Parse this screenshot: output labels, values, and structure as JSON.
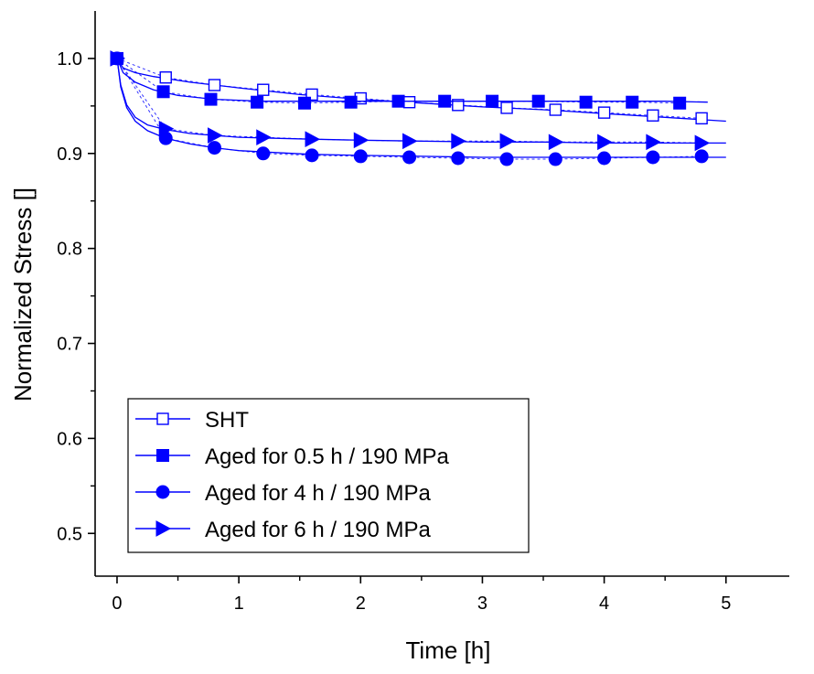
{
  "chart_data": {
    "type": "line",
    "title": "",
    "xlabel": "Time [h]",
    "ylabel": "Normalized Stress []",
    "xlim": [
      -0.18,
      5.52
    ],
    "ylim": [
      0.455,
      1.05
    ],
    "xticks": [
      0,
      1,
      2,
      3,
      4,
      5
    ],
    "xtick_labels": [
      "0",
      "1",
      "2",
      "3",
      "4",
      "5"
    ],
    "yticks": [
      0.5,
      0.6,
      0.7,
      0.8,
      0.9,
      1.0
    ],
    "ytick_labels": [
      "0.5",
      "0.6",
      "0.7",
      "0.8",
      "0.9",
      "1.0"
    ],
    "grid": false,
    "legend_position": "bottom-left",
    "line_color": "#0000ff",
    "series": [
      {
        "name": "SHT",
        "marker": "open-square",
        "x": [
          0,
          0.4,
          0.8,
          1.2,
          1.6,
          2.0,
          2.4,
          2.8,
          3.2,
          3.6,
          4.0,
          4.4,
          4.8
        ],
        "values": [
          1.0,
          0.98,
          0.972,
          0.967,
          0.962,
          0.958,
          0.954,
          0.951,
          0.948,
          0.946,
          0.943,
          0.94,
          0.937
        ],
        "fit_x": [
          0,
          0.05,
          0.15,
          0.3,
          0.6,
          1.0,
          1.5,
          2.0,
          2.5,
          3.0,
          3.5,
          4.0,
          4.5,
          5.0
        ],
        "fit_y": [
          1.0,
          0.99,
          0.985,
          0.981,
          0.975,
          0.969,
          0.962,
          0.957,
          0.953,
          0.949,
          0.946,
          0.942,
          0.938,
          0.934
        ]
      },
      {
        "name": "Aged for 0.5 h / 190 MPa",
        "marker": "filled-square",
        "x": [
          0,
          0.38,
          0.77,
          1.15,
          1.54,
          1.92,
          2.31,
          2.69,
          3.08,
          3.46,
          3.85,
          4.23,
          4.62
        ],
        "values": [
          1.0,
          0.965,
          0.957,
          0.954,
          0.953,
          0.954,
          0.955,
          0.955,
          0.955,
          0.955,
          0.954,
          0.954,
          0.953
        ],
        "fit_x": [
          0,
          0.05,
          0.15,
          0.3,
          0.5,
          0.8,
          1.2,
          1.6,
          2.0,
          2.5,
          3.0,
          3.5,
          4.0,
          4.5,
          4.85
        ],
        "fit_y": [
          1.0,
          0.985,
          0.975,
          0.967,
          0.961,
          0.957,
          0.955,
          0.955,
          0.955,
          0.955,
          0.955,
          0.955,
          0.955,
          0.955,
          0.954
        ]
      },
      {
        "name": "Aged for 4 h / 190 MPa",
        "marker": "filled-circle",
        "x": [
          0,
          0.4,
          0.8,
          1.2,
          1.6,
          2.0,
          2.4,
          2.8,
          3.2,
          3.6,
          4.0,
          4.4,
          4.8
        ],
        "values": [
          1.0,
          0.916,
          0.906,
          0.9,
          0.898,
          0.897,
          0.896,
          0.895,
          0.894,
          0.894,
          0.895,
          0.896,
          0.897
        ],
        "fit_x": [
          0,
          0.03,
          0.08,
          0.15,
          0.25,
          0.4,
          0.6,
          0.8,
          1.0,
          1.3,
          1.6,
          2.0,
          2.5,
          3.0,
          3.5,
          4.0,
          4.5,
          5.0
        ],
        "fit_y": [
          1.0,
          0.97,
          0.948,
          0.934,
          0.924,
          0.916,
          0.91,
          0.906,
          0.903,
          0.901,
          0.899,
          0.898,
          0.897,
          0.896,
          0.896,
          0.896,
          0.896,
          0.896
        ]
      },
      {
        "name": "Aged for 6 h / 190 MPa",
        "marker": "filled-triangle-right",
        "x": [
          0,
          0.4,
          0.8,
          1.2,
          1.6,
          2.0,
          2.4,
          2.8,
          3.2,
          3.6,
          4.0,
          4.4,
          4.8
        ],
        "values": [
          1.0,
          0.926,
          0.919,
          0.917,
          0.915,
          0.914,
          0.913,
          0.913,
          0.913,
          0.912,
          0.912,
          0.912,
          0.911
        ],
        "fit_x": [
          0,
          0.03,
          0.08,
          0.15,
          0.25,
          0.4,
          0.6,
          0.8,
          1.0,
          1.3,
          1.6,
          2.0,
          2.5,
          3.0,
          3.5,
          4.0,
          4.5,
          5.0
        ],
        "fit_y": [
          1.0,
          0.972,
          0.951,
          0.938,
          0.93,
          0.925,
          0.921,
          0.919,
          0.917,
          0.916,
          0.915,
          0.914,
          0.913,
          0.912,
          0.912,
          0.911,
          0.911,
          0.911
        ]
      }
    ]
  }
}
